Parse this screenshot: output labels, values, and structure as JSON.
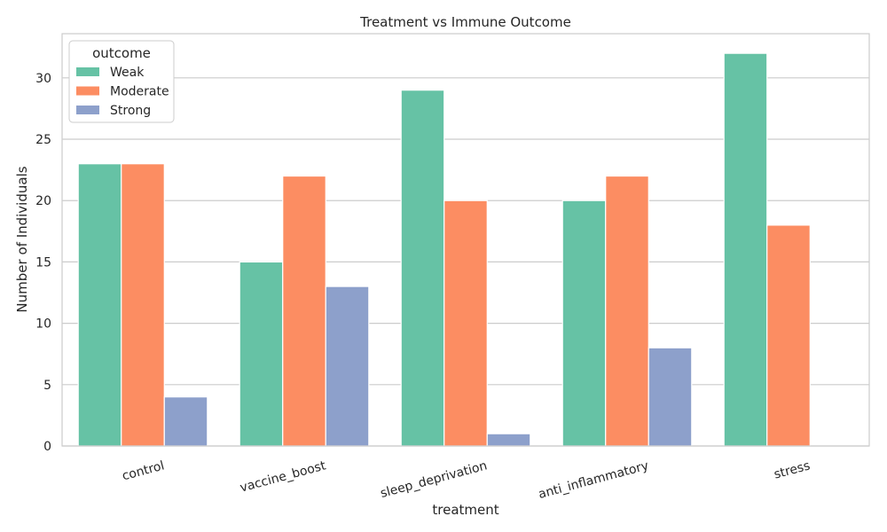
{
  "chart_data": {
    "type": "bar",
    "title": "Treatment vs Immune Outcome",
    "xlabel": "treatment",
    "ylabel": "Number of Individuals",
    "categories": [
      "control",
      "vaccine_boost",
      "sleep_deprivation",
      "anti_inflammatory",
      "stress"
    ],
    "series": [
      {
        "name": "Weak",
        "values": [
          23,
          15,
          29,
          20,
          32
        ]
      },
      {
        "name": "Moderate",
        "values": [
          23,
          22,
          20,
          22,
          18
        ]
      },
      {
        "name": "Strong",
        "values": [
          4,
          13,
          1,
          8,
          0
        ]
      }
    ],
    "ylim": [
      0,
      33.6
    ],
    "yticks": [
      0,
      5,
      10,
      15,
      20,
      25,
      30
    ],
    "grid": "horizontal",
    "legend": {
      "title": "outcome",
      "placement": "top-left"
    },
    "colors": {
      "Weak": "#66c2a5",
      "Moderate": "#fc8d62",
      "Strong": "#8da0cb"
    }
  }
}
